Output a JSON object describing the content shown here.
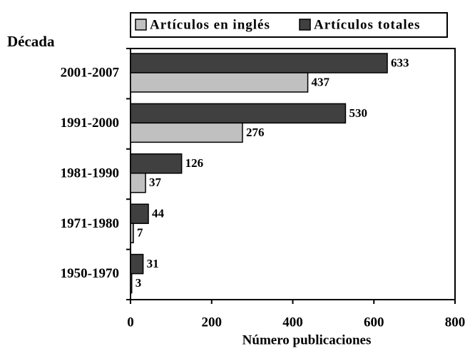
{
  "chart_data": {
    "type": "bar",
    "orientation": "horizontal",
    "y_label": "Década",
    "x_label": "Número publicaciones",
    "categories": [
      "2001-2007",
      "1991-2000",
      "1981-1990",
      "1971-1980",
      "1950-1970"
    ],
    "series": [
      {
        "name": "Artículos en inglés",
        "color": "#c0c0c0",
        "values": [
          437,
          276,
          37,
          7,
          3
        ]
      },
      {
        "name": "Artículos totales",
        "color": "#404040",
        "values": [
          633,
          530,
          126,
          44,
          31
        ]
      }
    ],
    "xlim": [
      0,
      800
    ],
    "xticks": [
      0,
      200,
      400,
      600,
      800
    ],
    "grid": false,
    "legend": "top"
  }
}
